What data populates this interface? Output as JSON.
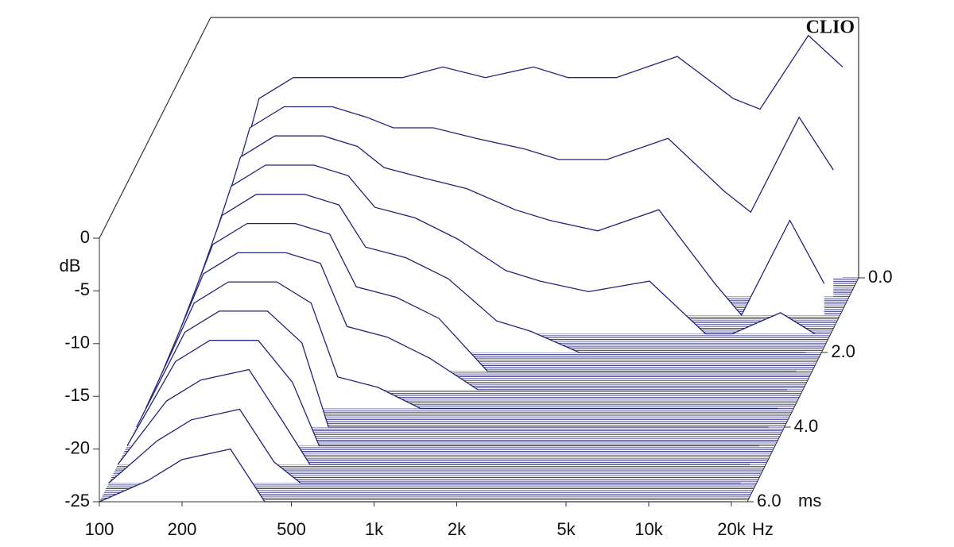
{
  "chart_data": {
    "type": "waterfall",
    "brand": "CLIO",
    "y_label": "dB",
    "x_unit": "Hz",
    "z_unit": "ms",
    "log_x": true,
    "color": "#23237a",
    "x": [
      100,
      150,
      200,
      300,
      400,
      500,
      700,
      1000,
      1500,
      2000,
      3000,
      5000,
      8000,
      10000,
      15000,
      20000
    ],
    "z": [
      0,
      0.5,
      1,
      1.5,
      2,
      2.5,
      3,
      3.5,
      4,
      4.5,
      5,
      5.5,
      6
    ],
    "surface": [
      [
        -25,
        -8,
        -6,
        -6,
        -6,
        -6,
        -5,
        -6,
        -5,
        -6,
        -6,
        -4,
        -8,
        -9,
        -2,
        -5
      ],
      [
        -25,
        -9,
        -7,
        -7,
        -8,
        -9,
        -9,
        -10,
        -11,
        -12,
        -12,
        -10,
        -15,
        -17,
        -8,
        -13
      ],
      [
        -25,
        -10,
        -8,
        -8,
        -9,
        -11,
        -12,
        -13,
        -15,
        -16,
        -17,
        -15,
        -22,
        -25,
        -16,
        -22
      ],
      [
        -25,
        -11,
        -9,
        -9,
        -10,
        -13,
        -14,
        -16,
        -19,
        -20,
        -21,
        -20,
        -25,
        -25,
        -23,
        -25
      ],
      [
        -25,
        -12,
        -10,
        -10,
        -11,
        -15,
        -16,
        -18,
        -22,
        -23,
        -25,
        -25,
        -25,
        -25,
        -25,
        -25
      ],
      [
        -25,
        -13,
        -11,
        -11,
        -12,
        -17,
        -18,
        -20,
        -25,
        -25,
        -25,
        -25,
        -25,
        -25,
        -25,
        -25
      ],
      [
        -25,
        -14,
        -12,
        -12,
        -13,
        -19,
        -20,
        -22,
        -25,
        -25,
        -25,
        -25,
        -25,
        -25,
        -25,
        -25
      ],
      [
        -25,
        -15,
        -13,
        -13,
        -15,
        -22,
        -23,
        -25,
        -25,
        -25,
        -25,
        -25,
        -25,
        -25,
        -25,
        -25
      ],
      [
        -25,
        -16,
        -14,
        -14,
        -17,
        -25,
        -25,
        -25,
        -25,
        -25,
        -25,
        -25,
        -25,
        -25,
        -25,
        -25
      ],
      [
        -25,
        -17,
        -15,
        -15,
        -19,
        -25,
        -25,
        -25,
        -25,
        -25,
        -25,
        -25,
        -25,
        -25,
        -25,
        -25
      ],
      [
        -25,
        -19,
        -17,
        -16,
        -21,
        -25,
        -25,
        -25,
        -25,
        -25,
        -25,
        -25,
        -25,
        -25,
        -25,
        -25
      ],
      [
        -25,
        -21,
        -19,
        -18,
        -23,
        -25,
        -25,
        -25,
        -25,
        -25,
        -25,
        -25,
        -25,
        -25,
        -25,
        -25
      ],
      [
        -25,
        -23,
        -21,
        -20,
        -25,
        -25,
        -25,
        -25,
        -25,
        -25,
        -25,
        -25,
        -25,
        -25,
        -25,
        -25
      ]
    ],
    "xlim": [
      100,
      20000
    ],
    "ylim": [
      -25,
      0
    ],
    "zlim": [
      0,
      6
    ],
    "xticks": [
      100,
      200,
      500,
      {
        "value": 1000,
        "label": "1k"
      },
      {
        "value": 2000,
        "label": "2k"
      },
      {
        "value": 5000,
        "label": "5k"
      },
      {
        "value": 10000,
        "label": "10k"
      },
      {
        "value": 20000,
        "label": "20k"
      }
    ],
    "yticks": [
      0,
      -5,
      -10,
      -15,
      -20,
      -25
    ],
    "zticks": [
      {
        "value": 0,
        "label": "0.0"
      },
      {
        "value": 2,
        "label": "2.0"
      },
      {
        "value": 4,
        "label": "4.0"
      },
      {
        "value": 6,
        "label": "6.0"
      }
    ]
  }
}
